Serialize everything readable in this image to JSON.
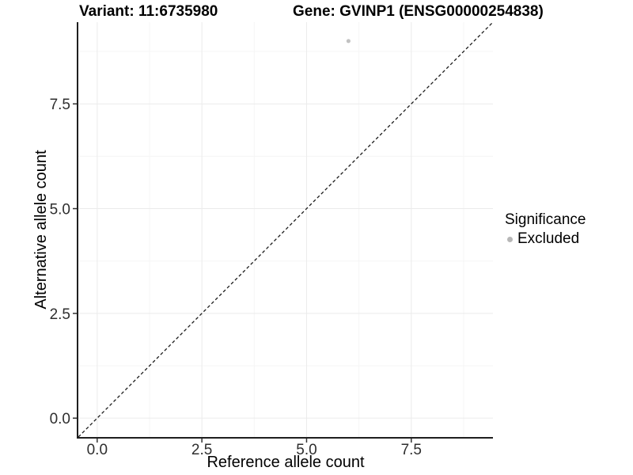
{
  "header": {
    "variant_title": "Variant: 11:6735980",
    "gene_title": "Gene: GVINP1 (ENSG00000254838)"
  },
  "legend": {
    "title": "Significance",
    "items": [
      {
        "label": "Excluded",
        "color": "#b7b7b7",
        "shape": "circle"
      }
    ]
  },
  "chart_data": {
    "type": "scatter",
    "xlabel": "Reference allele count",
    "ylabel": "Alternative allele count",
    "xlim": [
      -0.45,
      9.45
    ],
    "ylim": [
      -0.45,
      9.45
    ],
    "x_ticks": [
      0,
      2.5,
      5,
      7.5
    ],
    "x_tick_labels": [
      "0.0",
      "2.5",
      "5.0",
      "7.5"
    ],
    "y_ticks": [
      0,
      2.5,
      5,
      7.5
    ],
    "y_tick_labels": [
      "0.0",
      "2.5",
      "5.0",
      "7.5"
    ],
    "x_minor_ticks": [
      1.25,
      3.75,
      6.25,
      8.75
    ],
    "y_minor_ticks": [
      1.25,
      3.75,
      6.25,
      8.75
    ],
    "grid": true,
    "legend_position": "right",
    "series": [
      {
        "name": "Excluded",
        "color": "#c2c2c2",
        "points": [
          {
            "x": 6,
            "y": 9
          }
        ]
      }
    ],
    "reference_line": {
      "slope": 1,
      "intercept": 0,
      "style": "dashed",
      "color": "#1a1a1a"
    },
    "point_radius": 2.6,
    "colors": {
      "background": "#ffffff",
      "grid_major": "#ebebeb",
      "grid_minor": "#f5f5f5",
      "axis_line": "#1f1f1f",
      "tick_mark": "#333333",
      "tick_label": "#2e2e2e"
    }
  }
}
